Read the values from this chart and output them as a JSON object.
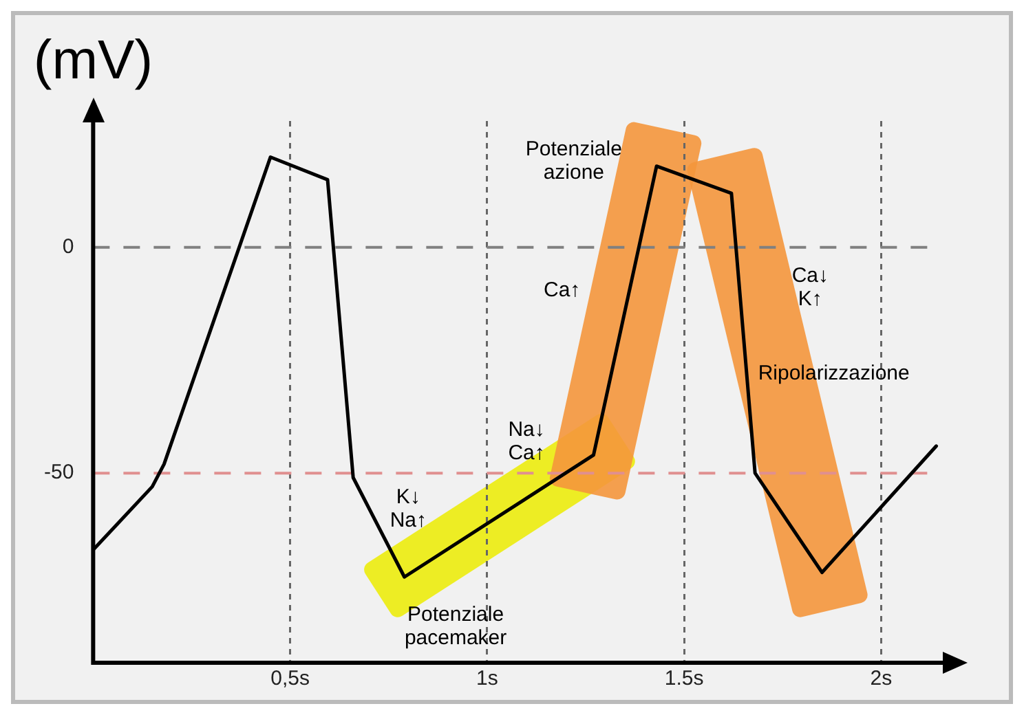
{
  "chart_data": {
    "type": "line",
    "ylabel": "(mV)",
    "x": [
      0,
      0.15,
      0.18,
      0.45,
      0.595,
      0.66,
      0.79,
      1.27,
      1.43,
      1.62,
      1.68,
      1.85,
      2.14
    ],
    "series": [
      {
        "color": "#000000",
        "values": [
          -67,
          -53,
          -48,
          20,
          15,
          -51,
          -73,
          -46,
          18,
          12,
          -50,
          -72,
          -44
        ]
      }
    ],
    "xlim": [
      0,
      2.16
    ],
    "xticks": [
      {
        "value": 0.5,
        "label": "0,5s"
      },
      {
        "value": 1,
        "label": "1s"
      },
      {
        "value": 1.5,
        "label": "1.5s"
      },
      {
        "value": 2,
        "label": "2s"
      }
    ],
    "ylim": [
      -92,
      28
    ],
    "yticks": [
      0,
      -50
    ],
    "grid": "x",
    "ref_lines": [
      {
        "axis": "y",
        "value": 0,
        "color": "#808080",
        "line_style": "dashed"
      },
      {
        "axis": "y",
        "value": -50,
        "color": "#e09090",
        "line_style": "dashed"
      }
    ],
    "annotations": [
      "Potenziale\nazione",
      "Ca↑",
      "Ca↓\nK↑",
      "Ripolarizzazione",
      "K↓\nNa↑",
      "Na↓\nCa↑",
      "Potenziale\npacemaker"
    ]
  }
}
